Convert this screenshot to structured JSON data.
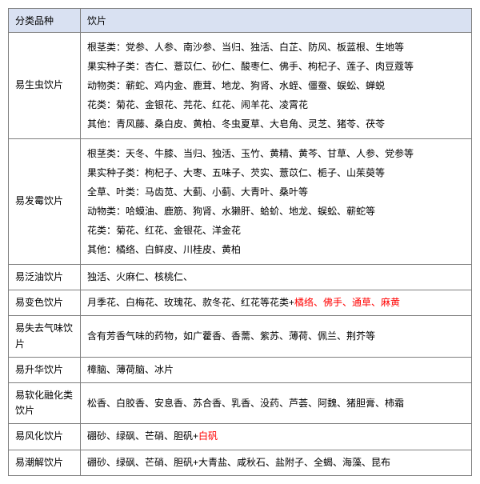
{
  "headers": {
    "category": "分类品种",
    "pieces": "饮片"
  },
  "rows": [
    {
      "category": "易生虫饮片",
      "lines": [
        "根茎类：党参、人参、南沙参、当归、独活、白芷、防风、板蓝根、生地等",
        "果实种子类：杏仁、薏苡仁、砂仁、酸枣仁、佛手、枸杞子、莲子、肉豆蔻等",
        "动物类：蕲蛇、鸡内金、鹿茸、地龙、狗肾、水蛭、僵蚕、蜈蚣、蝉蜕",
        "花类：菊花、金银花、芫花、红花、闹羊花、凌霄花",
        "其他：青风藤、桑白皮、黄柏、冬虫夏草、大皂角、灵芝、猪苓、茯苓"
      ]
    },
    {
      "category": "易发霉饮片",
      "lines": [
        "根茎类：天冬、牛膝、当归、独活、玉竹、黄精、黄芩、甘草、人参、党参等",
        "果实种子类：枸杞子、大枣、五味子、芡实、薏苡仁、栀子、山茱萸等",
        "全草、叶类：马齿苋、大蓟、小蓟、大青叶、桑叶等",
        "动物类：哈蟆油、鹿筋、狗肾、水獭肝、蛤蚧、地龙、蜈蚣、蕲蛇等",
        "花类：菊花、红花、金银花、洋金花",
        "其他：橘络、白鲜皮、川桂皮、黄柏"
      ]
    },
    {
      "category": "易泛油饮片",
      "content": "独活、火麻仁、核桃仁、"
    },
    {
      "category": "易变色饮片",
      "content_black": "月季花、白梅花、玫瑰花、款冬花、红花等花类+",
      "content_red": "橘络、佛手、通草、麻黄"
    },
    {
      "category": "易失去气味饮片",
      "content": "含有芳香气味的药物，如广藿香、香薷、紫苏、薄荷、佩兰、荆芥等"
    },
    {
      "category": "易升华饮片",
      "content": "樟脑、薄荷脑、冰片"
    },
    {
      "category": "易软化融化类饮片",
      "content": "松香、白胶香、安息香、苏合香、乳香、没药、芦荟、阿魏、猪胆膏、柿霜"
    },
    {
      "category": "易风化饮片",
      "content_black": "硼砂、绿砜、芒硝、胆矾+",
      "content_red": "白矾"
    },
    {
      "category": "易潮解饮片",
      "content": "硼砂、绿砜、芒硝、胆矾+大青盐、咸秋石、盐附子、全蝎、海藻、昆布"
    }
  ]
}
